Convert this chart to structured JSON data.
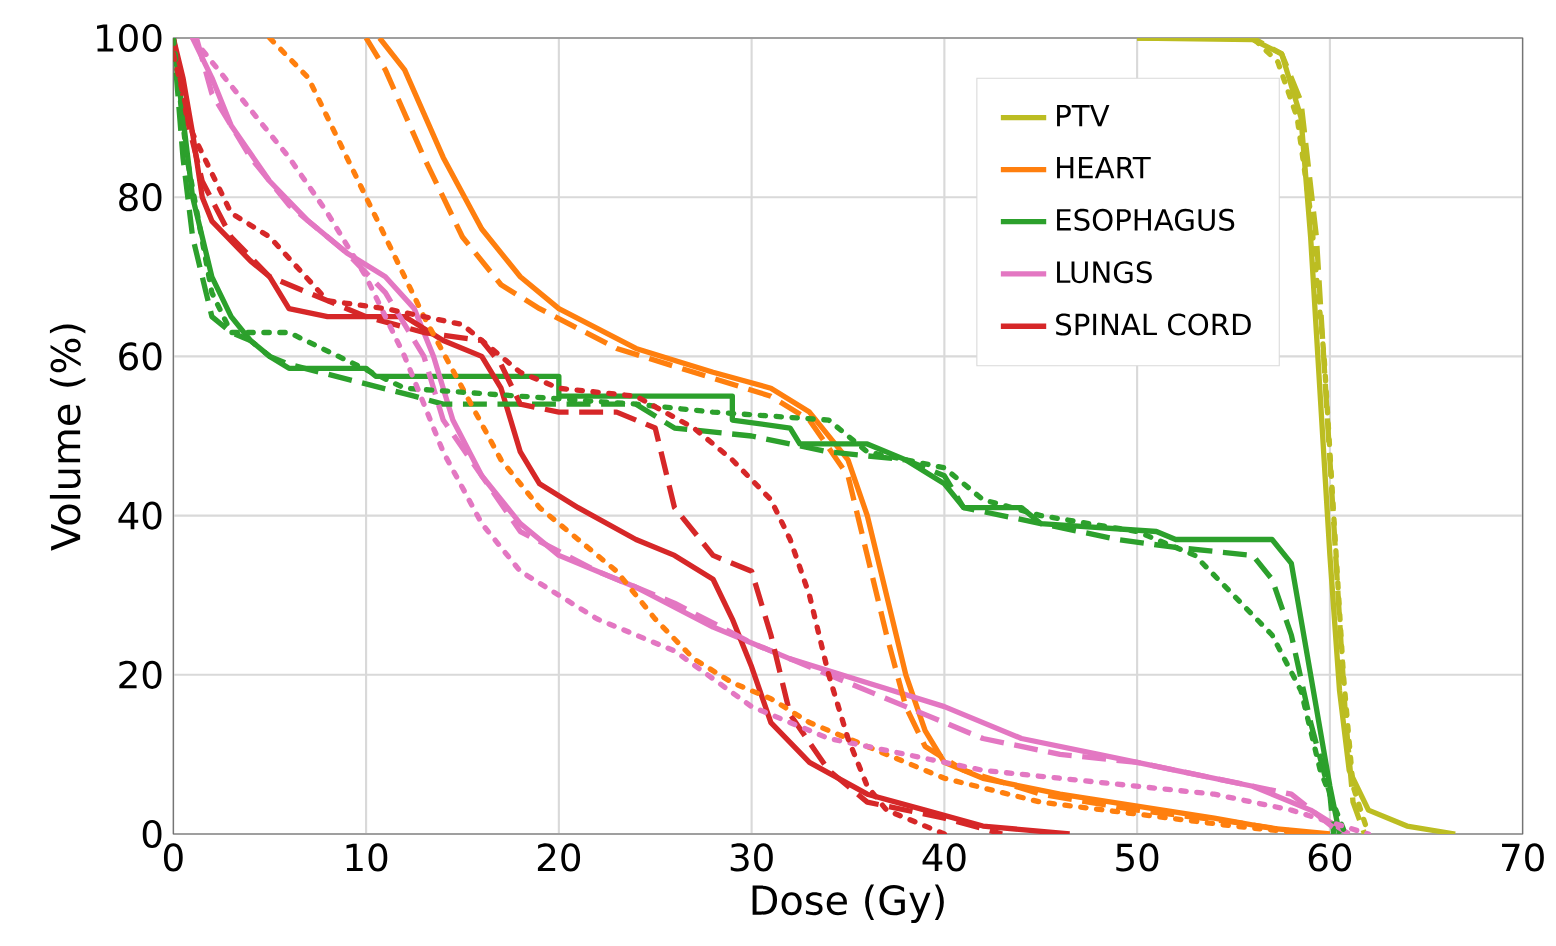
{
  "chart_data": {
    "type": "line",
    "xlabel": "Dose (Gy)",
    "ylabel": "Volume (%)",
    "xlim": [
      0,
      70
    ],
    "ylim": [
      0,
      100
    ],
    "xticks": [
      0,
      10,
      20,
      30,
      40,
      50,
      60,
      70
    ],
    "yticks": [
      0,
      20,
      40,
      60,
      80,
      100
    ],
    "grid": true,
    "legend": "top right",
    "marker": "none",
    "series": [
      {
        "name": "PTV",
        "color": "#bcbd22",
        "line_style": "solid",
        "x": [
          50,
          56,
          57.5,
          58.5,
          59,
          59.5,
          60,
          60.5,
          61,
          62,
          64,
          66.5
        ],
        "values": [
          100,
          99.8,
          98,
          90,
          75,
          55,
          35,
          18,
          8,
          3,
          1,
          0
        ]
      },
      {
        "name": "HEART",
        "color": "#ff7f0e",
        "line_style": "solid",
        "x": [
          10.7,
          12,
          14,
          16,
          18,
          20,
          24,
          28,
          31,
          33,
          35,
          36,
          37,
          38,
          39,
          40,
          42,
          46,
          50,
          54,
          57,
          60
        ],
        "values": [
          100,
          96,
          85,
          76,
          70,
          66,
          61,
          58,
          56,
          53,
          47,
          40,
          30,
          20,
          13,
          9,
          7,
          5,
          3.5,
          2,
          0.7,
          0
        ]
      },
      {
        "name": "ESOPHAGUS",
        "color": "#2ca02c",
        "line_style": "solid",
        "x": [
          0,
          0.5,
          1,
          2,
          3,
          4,
          5,
          6,
          10,
          10.5,
          20,
          20,
          29,
          29,
          32,
          32.5,
          36,
          38,
          40,
          41,
          44,
          45,
          51,
          52,
          57,
          58,
          59,
          60,
          60.5
        ],
        "values": [
          100,
          90,
          80,
          70,
          65,
          62,
          60,
          58.5,
          58.5,
          57.5,
          57.5,
          55,
          55,
          52,
          51,
          49,
          49,
          47,
          44,
          41,
          41,
          39,
          38,
          37,
          37,
          34,
          20,
          6,
          0
        ]
      },
      {
        "name": "LUNGS",
        "color": "#e377c2",
        "line_style": "solid",
        "x": [
          1,
          2,
          3,
          5,
          7,
          9,
          11,
          12.5,
          13.5,
          14.5,
          16,
          18,
          20,
          24,
          28,
          32,
          36,
          40,
          44,
          48,
          52,
          56,
          59,
          61
        ],
        "values": [
          100,
          95,
          89,
          82,
          77,
          73,
          70,
          66,
          60,
          52,
          45,
          39,
          35,
          31,
          26,
          22,
          19,
          16,
          12,
          10,
          8,
          6,
          3,
          0
        ]
      },
      {
        "name": "SPINAL CORD",
        "color": "#d62728",
        "line_style": "solid",
        "x": [
          0,
          0.5,
          1,
          1.5,
          2,
          4,
          5,
          6,
          8,
          12,
          14,
          16,
          17,
          18,
          19,
          21,
          24,
          26,
          28,
          29,
          30,
          31,
          33,
          36,
          39,
          42,
          46.5
        ],
        "values": [
          100,
          95,
          88,
          80,
          77,
          72,
          70,
          66,
          65,
          65,
          62,
          60,
          56,
          48,
          44,
          41,
          37,
          35,
          32,
          27,
          21,
          14,
          9,
          5,
          3,
          1,
          0
        ]
      },
      {
        "color": "#bcbd22",
        "line_style": "dashed",
        "x": [
          50,
          56,
          57.5,
          58.5,
          59.3,
          59.8,
          60.3,
          60.8,
          61.2,
          61.8
        ],
        "values": [
          100,
          100,
          98,
          92,
          75,
          55,
          35,
          15,
          4,
          0
        ]
      },
      {
        "color": "#ff7f0e",
        "line_style": "dashed",
        "x": [
          10,
          11,
          13,
          15,
          17,
          19,
          23,
          27,
          31,
          33,
          35,
          36,
          37,
          38,
          39,
          41,
          45,
          50,
          55,
          59
        ],
        "values": [
          100,
          96,
          85,
          75,
          69,
          66,
          61,
          58,
          55,
          52,
          45,
          35,
          25,
          16,
          11,
          8,
          5,
          3,
          1.5,
          0
        ]
      },
      {
        "color": "#2ca02c",
        "line_style": "dashed",
        "x": [
          0,
          0.5,
          1,
          2,
          3,
          4,
          5,
          6,
          12.5,
          14,
          24,
          26,
          30,
          34,
          38,
          40,
          41,
          45,
          49,
          52,
          56,
          57,
          58,
          59,
          60,
          60.2
        ],
        "values": [
          100,
          85,
          75,
          65,
          63,
          62,
          60,
          59,
          55,
          54,
          54,
          51,
          50,
          48,
          47,
          45,
          41,
          39,
          37,
          36,
          35,
          32,
          25,
          14,
          5,
          0
        ]
      },
      {
        "color": "#e377c2",
        "line_style": "dashed",
        "x": [
          1.2,
          2,
          4,
          6,
          9,
          11,
          13,
          14,
          16,
          18,
          22,
          26,
          30,
          34,
          38,
          42,
          46,
          50,
          54,
          58,
          60.6
        ],
        "values": [
          100,
          93,
          85,
          79,
          73,
          68,
          60,
          52,
          45,
          38,
          33,
          29,
          24,
          20,
          16,
          12,
          10,
          9,
          7,
          5,
          0
        ]
      },
      {
        "color": "#d62728",
        "line_style": "dashed",
        "x": [
          0,
          0.7,
          1.5,
          3,
          5,
          7,
          10,
          13,
          16,
          17,
          18,
          20,
          23,
          25,
          26,
          28,
          30,
          31,
          32,
          34,
          36,
          40,
          43
        ],
        "values": [
          100,
          90,
          82,
          75,
          70,
          68,
          65,
          63,
          62,
          59,
          54,
          53,
          53,
          51,
          41,
          35,
          33,
          25,
          15,
          8,
          4,
          2,
          0
        ]
      },
      {
        "color": "#bcbd22",
        "line_style": "dotted",
        "x": [
          52,
          56,
          57.3,
          58.3,
          59,
          59.7,
          60.2,
          60.7,
          61.2,
          62
        ],
        "values": [
          100,
          100,
          97,
          90,
          78,
          60,
          40,
          20,
          6,
          0
        ]
      },
      {
        "color": "#ff7f0e",
        "line_style": "dotted",
        "x": [
          5,
          7,
          9,
          11,
          13,
          15,
          17,
          19,
          21,
          23,
          25,
          27,
          29,
          31,
          33,
          36,
          40,
          45,
          50,
          55,
          59
        ],
        "values": [
          100,
          95,
          85,
          75,
          65,
          56,
          47,
          41,
          37,
          33,
          27,
          22,
          19,
          17,
          14,
          11,
          7,
          4,
          2.5,
          1,
          0
        ]
      },
      {
        "color": "#2ca02c",
        "line_style": "dotted",
        "x": [
          0,
          0.7,
          2,
          3,
          6,
          12,
          24,
          28,
          34,
          36,
          40,
          42,
          45,
          50,
          53,
          55,
          57,
          58.5,
          59.5,
          60.8
        ],
        "values": [
          100,
          85,
          68,
          63,
          63,
          56,
          54,
          53,
          52,
          48,
          46,
          42,
          40,
          38,
          35,
          30,
          25,
          18,
          8,
          0
        ]
      },
      {
        "color": "#e377c2",
        "line_style": "dotted",
        "x": [
          1,
          2,
          4,
          6,
          8,
          10,
          12,
          14,
          16,
          18,
          22,
          26,
          30,
          34,
          38,
          42,
          46,
          50,
          54,
          58,
          62
        ],
        "values": [
          100,
          97,
          91,
          85,
          78,
          70,
          60,
          48,
          39,
          33,
          27,
          23,
          16,
          12,
          10,
          8,
          7,
          6,
          5,
          3,
          0
        ]
      },
      {
        "color": "#d62728",
        "line_style": "dotted",
        "x": [
          0,
          1,
          3,
          5,
          8,
          11,
          15,
          18,
          20,
          24,
          27,
          29,
          31,
          32,
          33,
          34,
          35,
          36,
          37,
          40
        ],
        "values": [
          98,
          88,
          78,
          75,
          67,
          66,
          64,
          58,
          56,
          55,
          51,
          47,
          42,
          37,
          30,
          20,
          12,
          6,
          3,
          0
        ]
      }
    ]
  }
}
